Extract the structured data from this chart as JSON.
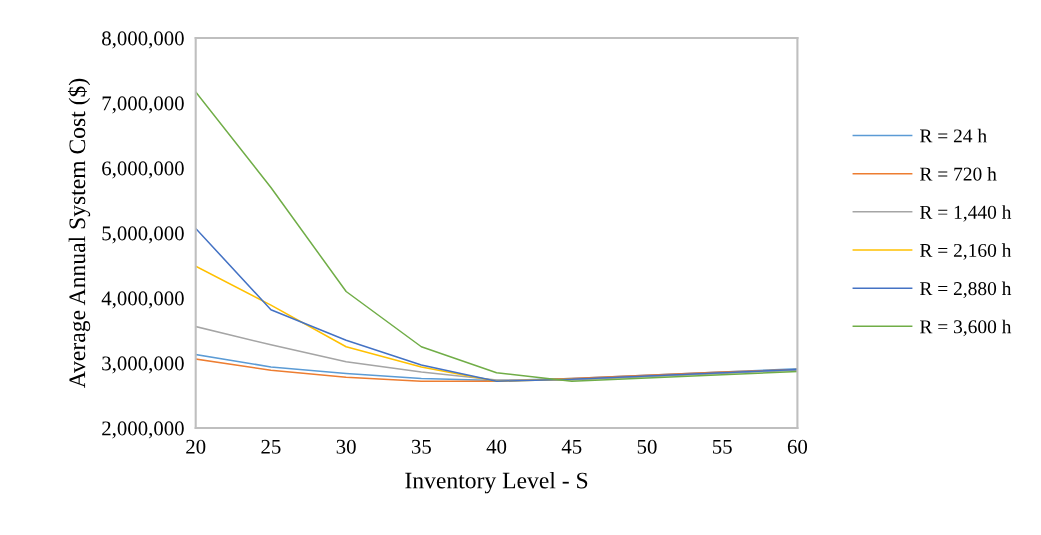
{
  "chart_data": {
    "type": "line",
    "xlabel": "Inventory Level - S",
    "ylabel": "Average Annual System Cost ($)",
    "x": [
      20,
      25,
      30,
      35,
      40,
      45,
      50,
      55,
      60
    ],
    "xlim": [
      20,
      60
    ],
    "xticks": [
      20,
      25,
      30,
      35,
      40,
      45,
      50,
      55,
      60
    ],
    "ylim": [
      2000000,
      8000000
    ],
    "yticks": [
      {
        "value": 2000000,
        "label": "2,000,000"
      },
      {
        "value": 3000000,
        "label": "3,000,000"
      },
      {
        "value": 4000000,
        "label": "4,000,000"
      },
      {
        "value": 5000000,
        "label": "5,000,000"
      },
      {
        "value": 6000000,
        "label": "6,000,000"
      },
      {
        "value": 7000000,
        "label": "7,000,000"
      },
      {
        "value": 8000000,
        "label": "8,000,000"
      }
    ],
    "grid": false,
    "legend": "right",
    "marker": "none",
    "line_style": "solid",
    "series": [
      {
        "name": "R = 24 h",
        "color": "#5b9bd5",
        "values": [
          3130000,
          2940000,
          2840000,
          2760000,
          2730000,
          2760000,
          2810000,
          2860000,
          2910000
        ]
      },
      {
        "name": "R = 720 h",
        "color": "#ed7d31",
        "values": [
          3060000,
          2890000,
          2780000,
          2720000,
          2720000,
          2760000,
          2810000,
          2860000,
          2900000
        ]
      },
      {
        "name": "R = 1,440 h",
        "color": "#a5a5a5",
        "values": [
          3560000,
          3280000,
          3020000,
          2860000,
          2740000,
          2740000,
          2790000,
          2840000,
          2890000
        ]
      },
      {
        "name": "R = 2,160 h",
        "color": "#ffc000",
        "values": [
          4490000,
          3890000,
          3250000,
          2940000,
          2720000,
          2750000,
          null,
          null,
          null
        ]
      },
      {
        "name": "R = 2,880 h",
        "color": "#4472c4",
        "values": [
          5070000,
          3820000,
          3350000,
          2970000,
          2720000,
          2750000,
          2800000,
          2850000,
          2900000
        ]
      },
      {
        "name": "R = 3,600 h",
        "color": "#70ad47",
        "values": [
          7170000,
          5700000,
          4100000,
          3250000,
          2850000,
          2720000,
          2770000,
          2820000,
          2870000
        ]
      }
    ]
  }
}
